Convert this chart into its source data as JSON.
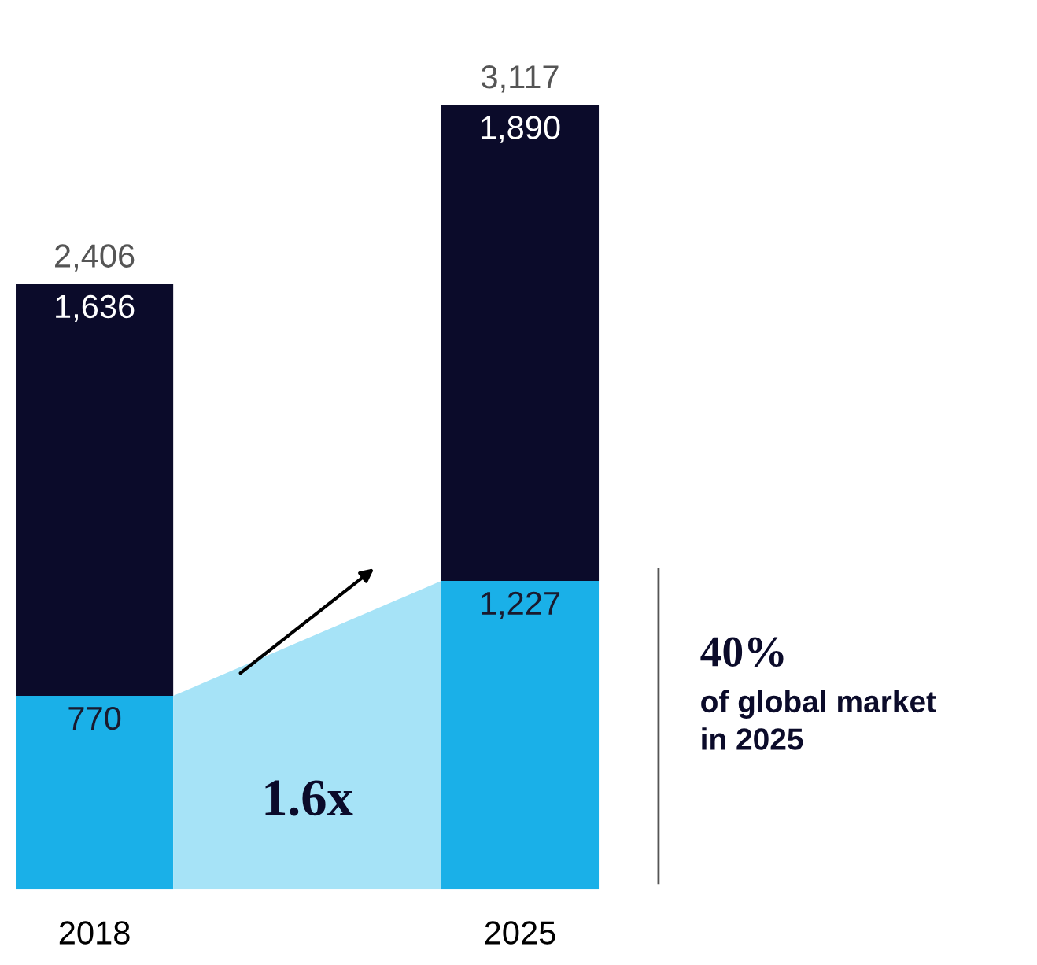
{
  "chart_data": {
    "type": "bar",
    "stacked": true,
    "categories": [
      "2018",
      "2025"
    ],
    "series": [
      {
        "color": "#1ab0e8",
        "values": [
          770,
          1227
        ],
        "value_labels": [
          "770",
          "1,227"
        ]
      },
      {
        "color": "#0b0b2a",
        "values": [
          1636,
          1890
        ],
        "value_labels": [
          "1,636",
          "1,890"
        ]
      }
    ],
    "totals": [
      "2,406",
      "3,117"
    ],
    "annotations": [
      "1.6x",
      "40%",
      "of global market\nin 2025"
    ],
    "grid": false,
    "legend": false
  }
}
